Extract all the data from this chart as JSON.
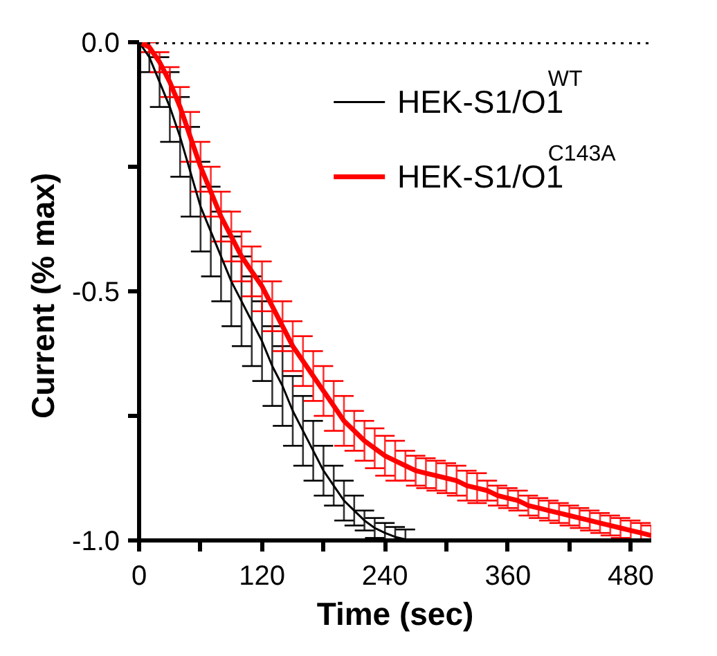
{
  "chart_data": {
    "type": "line",
    "xlabel": "Time (sec)",
    "ylabel": "Current  (% max)",
    "x": [
      0,
      10,
      20,
      30,
      40,
      50,
      60,
      70,
      80,
      90,
      100,
      110,
      120,
      130,
      140,
      150,
      160,
      170,
      180,
      190,
      200,
      210,
      220,
      230,
      240,
      250,
      260,
      270,
      280
    ],
    "series": [
      {
        "name": "HEK-S1/O1$^{WT}$",
        "color": "#000000",
        "values": [
          0,
          -0.03,
          -0.08,
          -0.13,
          -0.19,
          -0.26,
          -0.33,
          -0.38,
          -0.43,
          -0.48,
          -0.52,
          -0.56,
          -0.6,
          -0.65,
          -0.69,
          -0.74,
          -0.78,
          -0.82,
          -0.86,
          -0.89,
          -0.92,
          -0.94,
          -0.96,
          -0.975,
          -0.985,
          -0.993,
          -0.998,
          -1.0,
          -1.0
        ],
        "errors": [
          0,
          0.03,
          0.05,
          0.07,
          0.08,
          0.09,
          0.09,
          0.09,
          0.09,
          0.09,
          0.09,
          0.09,
          0.08,
          0.08,
          0.08,
          0.07,
          0.07,
          0.06,
          0.05,
          0.04,
          0.04,
          0.03,
          0.02,
          0.02,
          0.02,
          0.02,
          0.02,
          0,
          0
        ]
      },
      {
        "name": "HEK-S1/O1$^{C143A}$",
        "color": "#ff0000",
        "x": [
          0,
          10,
          20,
          30,
          40,
          50,
          60,
          70,
          80,
          90,
          100,
          110,
          120,
          130,
          140,
          150,
          160,
          170,
          180,
          190,
          200,
          210,
          220,
          230,
          240,
          250,
          260,
          270,
          280,
          290,
          300,
          310,
          320,
          330,
          340,
          350,
          360,
          370,
          380,
          390,
          400,
          410,
          420,
          430,
          440,
          450,
          460,
          470,
          480,
          490,
          500
        ],
        "values": [
          0,
          -0.01,
          -0.04,
          -0.08,
          -0.13,
          -0.19,
          -0.25,
          -0.3,
          -0.35,
          -0.39,
          -0.43,
          -0.46,
          -0.49,
          -0.53,
          -0.57,
          -0.61,
          -0.64,
          -0.67,
          -0.7,
          -0.73,
          -0.76,
          -0.78,
          -0.8,
          -0.815,
          -0.83,
          -0.84,
          -0.85,
          -0.86,
          -0.865,
          -0.87,
          -0.875,
          -0.88,
          -0.89,
          -0.895,
          -0.9,
          -0.91,
          -0.915,
          -0.92,
          -0.93,
          -0.935,
          -0.94,
          -0.945,
          -0.95,
          -0.955,
          -0.96,
          -0.965,
          -0.97,
          -0.975,
          -0.98,
          -0.985,
          -0.99
        ],
        "errors": [
          0,
          0.01,
          0.02,
          0.03,
          0.04,
          0.05,
          0.05,
          0.05,
          0.05,
          0.05,
          0.05,
          0.05,
          0.05,
          0.05,
          0.05,
          0.05,
          0.05,
          0.05,
          0.05,
          0.05,
          0.05,
          0.04,
          0.04,
          0.04,
          0.04,
          0.04,
          0.03,
          0.03,
          0.03,
          0.03,
          0.03,
          0.03,
          0.03,
          0.03,
          0.02,
          0.02,
          0.02,
          0.02,
          0.02,
          0.02,
          0.02,
          0.02,
          0.02,
          0.02,
          0.02,
          0.02,
          0.02,
          0.02,
          0.02,
          0.02,
          0.02
        ]
      }
    ],
    "xlim": [
      0,
      500
    ],
    "ylim": [
      -1.0,
      0.0
    ],
    "xticks": [
      0,
      {
        "value": 60,
        "label": null
      },
      120,
      {
        "value": 180,
        "label": null
      },
      240,
      {
        "value": 300,
        "label": null
      },
      360,
      {
        "value": 420,
        "label": null
      },
      480
    ],
    "yticks": [
      {
        "value": -1.0,
        "label": "-1.0"
      },
      {
        "value": -0.75,
        "label": null
      },
      -0.5,
      {
        "value": -0.25,
        "label": null
      },
      {
        "value": 0.0,
        "label": "0.0"
      }
    ],
    "ref_lines": [
      {
        "axis": "y",
        "value": 0.0,
        "color": "#000000",
        "line_style": "dotted"
      }
    ],
    "grid": false,
    "legend": "top right",
    "marker": "none",
    "line_style": "solid"
  }
}
